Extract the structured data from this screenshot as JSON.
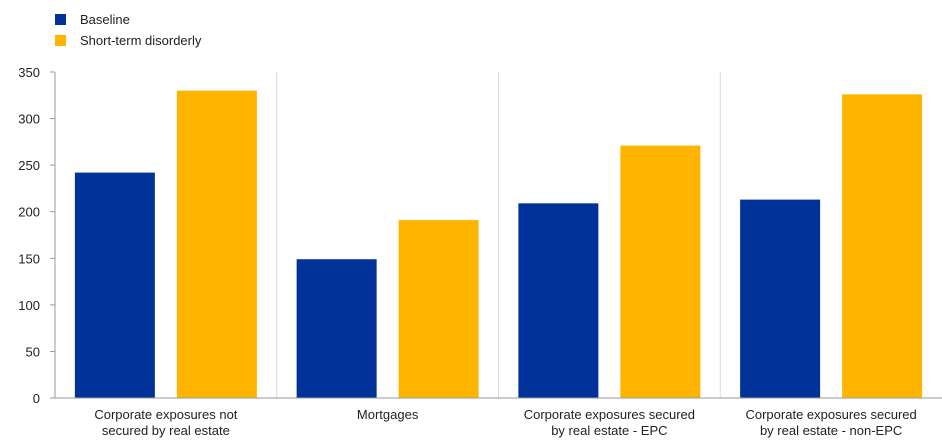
{
  "chart_data": {
    "type": "bar",
    "categories": [
      [
        "Corporate exposures not",
        "secured by real estate"
      ],
      [
        "Mortgages"
      ],
      [
        "Corporate exposures secured",
        "by real estate - EPC"
      ],
      [
        "Corporate exposures secured",
        "by real estate - non-EPC"
      ]
    ],
    "series": [
      {
        "name": "Baseline",
        "color": "#003299",
        "values": [
          242,
          149,
          209,
          213
        ]
      },
      {
        "name": "Short-term disorderly",
        "color": "#FFB400",
        "values": [
          330,
          191,
          271,
          326
        ]
      }
    ],
    "ylim": [
      0,
      350
    ],
    "yticks": [
      0,
      50,
      100,
      150,
      200,
      250,
      300,
      350
    ],
    "grid": "vertical category separators",
    "legend_position": "top-left"
  }
}
